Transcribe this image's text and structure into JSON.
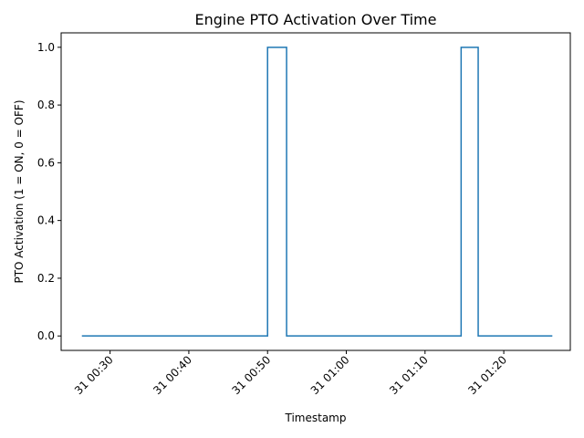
{
  "chart_data": {
    "type": "line",
    "title": "Engine PTO Activation Over Time",
    "xlabel": "Timestamp",
    "ylabel": "PTO Activation (1 = ON, 0 = OFF)",
    "x_tick_labels": [
      "31 00:30",
      "31 00:40",
      "31 00:50",
      "31 01:00",
      "31 01:10",
      "31 01:20"
    ],
    "x_ticks": [
      "00:30",
      "00:40",
      "00:50",
      "01:00",
      "01:10",
      "01:20"
    ],
    "xlim": [
      "00:23:47",
      "01:28:27"
    ],
    "y_ticks": [
      0.0,
      0.2,
      0.4,
      0.6,
      0.8,
      1.0
    ],
    "y_tick_labels": [
      "0.0",
      "0.2",
      "0.4",
      "0.6",
      "0.8",
      "1.0"
    ],
    "ylim": [
      -0.05,
      1.05
    ],
    "grid": false,
    "series": [
      {
        "color": "#1f77b4",
        "step": "post",
        "points": [
          [
            "00:26:25",
            0
          ],
          [
            "00:50:00",
            1
          ],
          [
            "00:52:25",
            0
          ],
          [
            "01:14:35",
            1
          ],
          [
            "01:16:45",
            0
          ],
          [
            "01:26:10",
            0
          ]
        ]
      }
    ]
  }
}
